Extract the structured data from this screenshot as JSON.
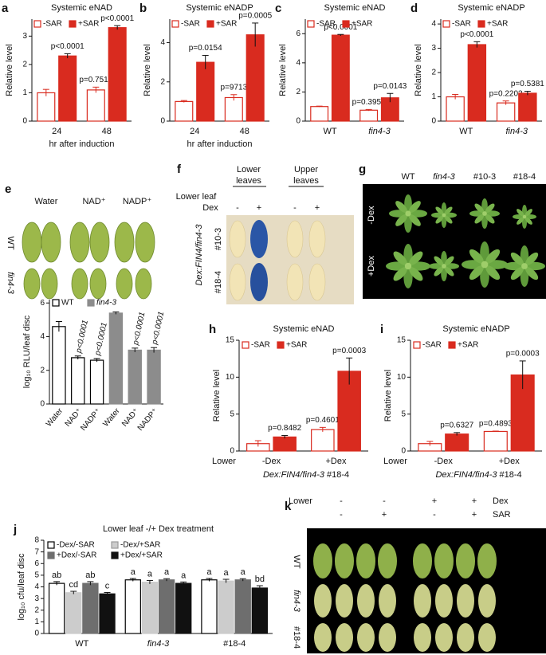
{
  "chart_data": [
    {
      "type": "bar",
      "panel": "a",
      "title": "Systemic eNAD",
      "ylabel": "Relative level",
      "xlabel": "hr after induction",
      "categories": [
        "24",
        "48"
      ],
      "ylim": [
        0,
        3.6
      ],
      "yticks": [
        0,
        1,
        2,
        3
      ],
      "series": [
        {
          "name": "-SAR",
          "color": "#d92b1f",
          "fill": "#ffffff",
          "values": [
            1.0,
            1.1
          ],
          "errors": [
            0.12,
            0.1
          ],
          "p_values": [
            null,
            "p=0.7517"
          ]
        },
        {
          "name": "+SAR",
          "color": "#d92b1f",
          "fill": "#d92b1f",
          "values": [
            2.3,
            3.3
          ],
          "errors": [
            0.08,
            0.07
          ],
          "p_values": [
            "p<0.0001",
            "p<0.0001"
          ]
        }
      ]
    },
    {
      "type": "bar",
      "panel": "b",
      "title": "Systemic eNADP",
      "ylabel": "Relative level",
      "xlabel": "hr after induction",
      "categories": [
        "24",
        "48"
      ],
      "ylim": [
        0,
        5.2
      ],
      "yticks": [
        0,
        2,
        4
      ],
      "series": [
        {
          "name": "-SAR",
          "color": "#d92b1f",
          "fill": "#ffffff",
          "values": [
            1.0,
            1.2
          ],
          "errors": [
            0.05,
            0.15
          ],
          "p_values": [
            null,
            "p=9713"
          ]
        },
        {
          "name": "+SAR",
          "color": "#d92b1f",
          "fill": "#d92b1f",
          "values": [
            3.0,
            4.4
          ],
          "errors": [
            0.35,
            0.6
          ],
          "p_values": [
            "p=0.0154",
            "p=0.0005"
          ]
        }
      ]
    },
    {
      "type": "bar",
      "panel": "c",
      "title": "Systemic eNAD",
      "ylabel": "Relative level",
      "categories": [
        "WT",
        "fin4-3"
      ],
      "ylim": [
        0,
        7
      ],
      "yticks": [
        0,
        2,
        4,
        6
      ],
      "series": [
        {
          "name": "-SAR",
          "color": "#d92b1f",
          "fill": "#ffffff",
          "values": [
            1.0,
            0.75
          ],
          "errors": [
            0.03,
            0.05
          ],
          "p_values": [
            null,
            "p=0.3958"
          ]
        },
        {
          "name": "+SAR",
          "color": "#d92b1f",
          "fill": "#d92b1f",
          "values": [
            5.9,
            1.6
          ],
          "errors": [
            0.05,
            0.3
          ],
          "p_values": [
            "p<0.0001",
            "p=0.0143"
          ]
        }
      ]
    },
    {
      "type": "bar",
      "panel": "d",
      "title": "Systemic eNADP",
      "ylabel": "Relative level",
      "categories": [
        "WT",
        "fin4-3"
      ],
      "ylim": [
        0,
        4.2
      ],
      "yticks": [
        0,
        1,
        2,
        3,
        4
      ],
      "series": [
        {
          "name": "-SAR",
          "color": "#d92b1f",
          "fill": "#ffffff",
          "values": [
            1.0,
            0.75
          ],
          "errors": [
            0.1,
            0.08
          ],
          "p_values": [
            null,
            "p=0.2203"
          ]
        },
        {
          "name": "+SAR",
          "color": "#d92b1f",
          "fill": "#d92b1f",
          "values": [
            3.15,
            1.15
          ],
          "errors": [
            0.12,
            0.08
          ],
          "p_values": [
            "p<0.0001",
            "p=0.5381"
          ]
        }
      ]
    },
    {
      "type": "bar",
      "ylabel": "log₁₀ RLU/leaf disc",
      "categories": [
        "Water",
        "NAD⁺",
        "NADP⁺",
        "Water",
        "NAD⁺",
        "NADP⁺"
      ],
      "ylim": [
        0,
        6.2
      ],
      "yticks": [
        0,
        2,
        4,
        6
      ],
      "series": [
        {
          "name": "WT",
          "color": "#000000",
          "fill": "#ffffff",
          "values": [
            4.6,
            2.75,
            2.6,
            null,
            null,
            null
          ],
          "errors": [
            0.3,
            0.1,
            0.1,
            null,
            null,
            null
          ],
          "p_values": [
            null,
            "p<0.0001",
            "p<0.0001",
            null,
            null,
            null
          ]
        },
        {
          "name": "fin4-3",
          "color": "#8c8c8c",
          "fill": "#8c8c8c",
          "values": [
            null,
            null,
            null,
            5.4,
            3.2,
            3.2
          ],
          "errors": [
            null,
            null,
            null,
            0.07,
            0.12,
            0.15
          ],
          "p_values": [
            null,
            null,
            null,
            null,
            "p<0.0001",
            "p<0.0001"
          ]
        }
      ]
    },
    {
      "type": "bar",
      "panel": "h",
      "title": "Systemic eNAD",
      "ylabel": "Relative level",
      "categories": [
        "-Dex",
        "+Dex"
      ],
      "x_row_label": "Lower",
      "xlabel": "Dex:FIN4/fin4-3",
      "xlabel_suffix": "#18-4",
      "ylim": [
        0,
        15
      ],
      "yticks": [
        0,
        5,
        10,
        15
      ],
      "series": [
        {
          "name": "-SAR",
          "color": "#d92b1f",
          "fill": "#ffffff",
          "values": [
            1.0,
            2.9
          ],
          "errors": [
            0.4,
            0.3
          ],
          "p_values": [
            null,
            "p=0.4601"
          ]
        },
        {
          "name": "+SAR",
          "color": "#d92b1f",
          "fill": "#d92b1f",
          "values": [
            1.9,
            10.8
          ],
          "errors": [
            0.2,
            1.8
          ],
          "p_values": [
            "p=0.8482",
            "p=0.0003"
          ]
        }
      ]
    },
    {
      "type": "bar",
      "panel": "i",
      "title": "Systemic eNADP",
      "ylabel": "Relative level",
      "categories": [
        "-Dex",
        "+Dex"
      ],
      "x_row_label": "Lower",
      "xlabel": "Dex:FIN4/fin4-3",
      "xlabel_suffix": "#18-4",
      "ylim": [
        0,
        15
      ],
      "yticks": [
        0,
        5,
        10,
        15
      ],
      "series": [
        {
          "name": "-SAR",
          "color": "#d92b1f",
          "fill": "#ffffff",
          "values": [
            1.0,
            2.65
          ],
          "errors": [
            0.3,
            0.05
          ],
          "p_values": [
            null,
            "p=0.4893"
          ]
        },
        {
          "name": "+SAR",
          "color": "#d92b1f",
          "fill": "#d92b1f",
          "values": [
            2.3,
            10.3
          ],
          "errors": [
            0.2,
            1.9
          ],
          "p_values": [
            "p=0.6327",
            "p=0.0003"
          ]
        }
      ]
    },
    {
      "type": "bar",
      "panel": "j",
      "title": "Lower leaf -/+ Dex treatment",
      "ylabel": "log₁₀ cfu/leaf disc",
      "categories": [
        "WT",
        "fin4-3",
        "#18-4"
      ],
      "ylim": [
        0,
        8
      ],
      "yticks": [
        0,
        1,
        2,
        3,
        4,
        5,
        6,
        7,
        8
      ],
      "series": [
        {
          "name": "-Dex/-SAR",
          "color": "#000000",
          "fill": "#ffffff",
          "values": [
            4.3,
            4.6,
            4.6
          ],
          "errors": [
            0.15,
            0.12,
            0.12
          ],
          "letters": [
            "ab",
            "a",
            "a"
          ]
        },
        {
          "name": "-Dex/+SAR",
          "color": "#cccccc",
          "fill": "#cccccc",
          "values": [
            3.5,
            4.4,
            4.5
          ],
          "errors": [
            0.12,
            0.15,
            0.15
          ],
          "letters": [
            "cd",
            "a",
            "a"
          ]
        },
        {
          "name": "+Dex/-SAR",
          "color": "#6e6e6e",
          "fill": "#6e6e6e",
          "values": [
            4.3,
            4.6,
            4.6
          ],
          "errors": [
            0.15,
            0.1,
            0.1
          ],
          "letters": [
            "ab",
            "a",
            "a"
          ]
        },
        {
          "name": "+Dex/+SAR",
          "color": "#111111",
          "fill": "#111111",
          "values": [
            3.4,
            4.3,
            3.9
          ],
          "errors": [
            0.12,
            0.12,
            0.2
          ],
          "letters": [
            "c",
            "a",
            "bd"
          ]
        }
      ]
    }
  ],
  "images": {
    "e": {
      "panel": "e",
      "columns": [
        "Water",
        "NAD⁺",
        "NADP⁺"
      ],
      "rows": [
        "WT",
        "fin4-3"
      ]
    },
    "f": {
      "panel": "f",
      "column_groups": [
        [
          "Lower",
          "leaves"
        ],
        [
          "Upper",
          "leaves"
        ]
      ],
      "treatment_labels": [
        "Lower leaf",
        "Dex"
      ],
      "signs": [
        "-",
        "+",
        "-",
        "+"
      ],
      "genotype": "Dex:FIN4/fin4-3",
      "rows": [
        "#10-3",
        "#18-4"
      ]
    },
    "g": {
      "panel": "g",
      "columns": [
        "WT",
        "fin4-3",
        "#10-3",
        "#18-4"
      ],
      "rows": [
        "-Dex",
        "+Dex"
      ]
    },
    "k": {
      "panel": "k",
      "header_labels": [
        "Lower",
        "Dex",
        "SAR"
      ],
      "lower_signs": [
        "-",
        "-",
        "+",
        "+"
      ],
      "sar_signs": [
        "-",
        "+",
        "-",
        "+"
      ],
      "rows": [
        "WT",
        "fin4-3",
        "#18-4"
      ]
    }
  }
}
